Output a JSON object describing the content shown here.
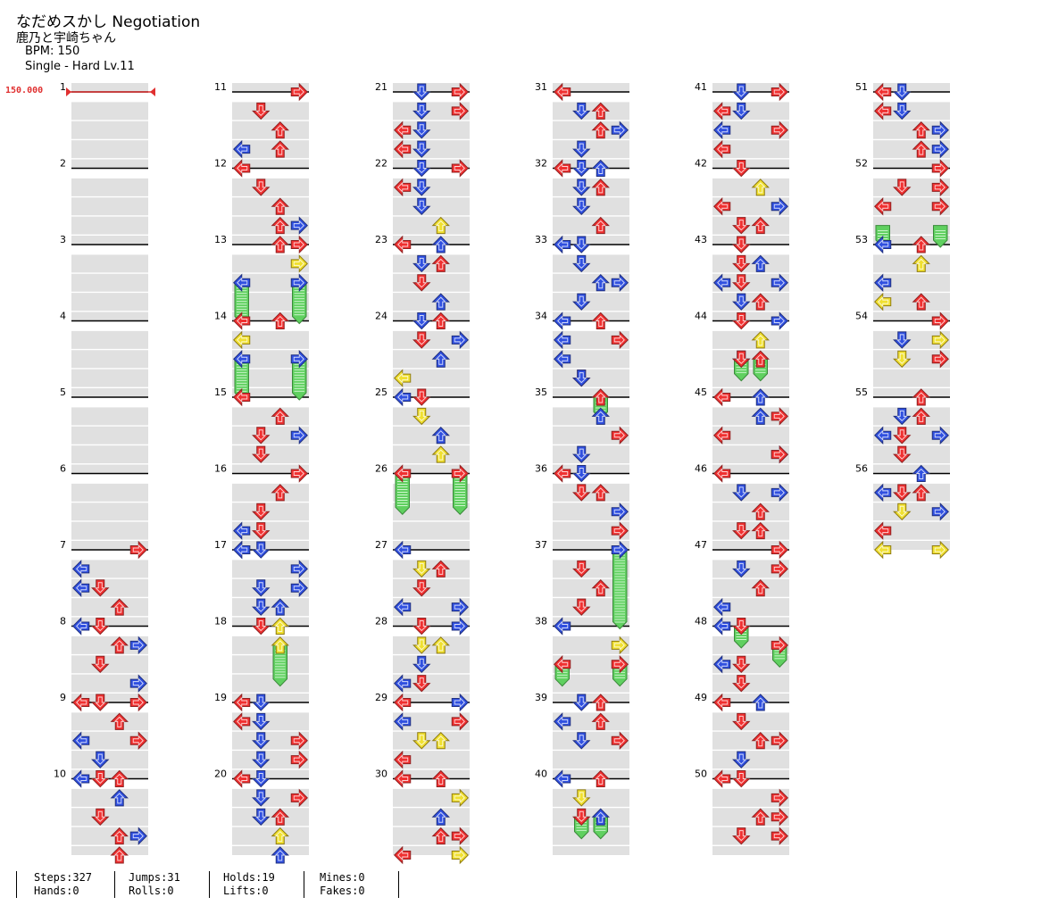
{
  "header": {
    "title": "なだめスかし Negotiation",
    "artist": "鹿乃と宇崎ちゃん",
    "bpm": "BPM: 150",
    "difficulty": "Single - Hard  Lv.11"
  },
  "bpm_marker": "150.000",
  "measure_count": 56,
  "colors": {
    "red": "#f03030",
    "blue": "#3050e0",
    "yellow": "#f0e030",
    "hold": "#60d060",
    "band": "#e0e0e0"
  },
  "stats": [
    {
      "a": "Steps:327",
      "b": "Hands:0"
    },
    {
      "a": "Jumps:31",
      "b": "Rolls:0"
    },
    {
      "a": "Holds:19",
      "b": "Lifts:0"
    },
    {
      "a": "Mines:0",
      "b": "Fakes:0"
    }
  ],
  "notes": [
    [
      7,
      0.0,
      3,
      "r"
    ],
    [
      7,
      0.25,
      0,
      "b"
    ],
    [
      7,
      0.5,
      1,
      "r"
    ],
    [
      7,
      0.5,
      0,
      "b"
    ],
    [
      7,
      0.75,
      2,
      "r"
    ],
    [
      7,
      1.0,
      0,
      "b"
    ],
    [
      8,
      0.0,
      1,
      "r"
    ],
    [
      8,
      0.25,
      2,
      "r"
    ],
    [
      8,
      0.25,
      3,
      "b"
    ],
    [
      8,
      0.5,
      1,
      "r"
    ],
    [
      8,
      0.75,
      3,
      "b"
    ],
    [
      8,
      1.0,
      1,
      "r"
    ],
    [
      9,
      0.0,
      0,
      "r"
    ],
    [
      9,
      0.0,
      3,
      "r"
    ],
    [
      9,
      0.25,
      2,
      "r"
    ],
    [
      9,
      0.5,
      0,
      "b"
    ],
    [
      9,
      0.5,
      3,
      "r"
    ],
    [
      9,
      0.75,
      1,
      "b"
    ],
    [
      9,
      1.0,
      0,
      "b"
    ],
    [
      9,
      1.0,
      2,
      "r"
    ],
    [
      10,
      0.0,
      1,
      "r"
    ],
    [
      10,
      0.25,
      2,
      "b"
    ],
    [
      10,
      0.5,
      1,
      "r"
    ],
    [
      10,
      0.75,
      2,
      "r"
    ],
    [
      10,
      0.75,
      3,
      "b"
    ],
    [
      10,
      1.0,
      2,
      "r"
    ],
    [
      11,
      0.0,
      3,
      "r"
    ],
    [
      11,
      0.25,
      1,
      "r"
    ],
    [
      11,
      0.5,
      2,
      "r"
    ],
    [
      11,
      0.75,
      0,
      "b"
    ],
    [
      11,
      0.75,
      2,
      "r"
    ],
    [
      12,
      0.0,
      0,
      "r"
    ],
    [
      12,
      0.25,
      1,
      "r"
    ],
    [
      12,
      0.5,
      2,
      "r"
    ],
    [
      12,
      0.75,
      2,
      "r"
    ],
    [
      12,
      0.75,
      3,
      "b"
    ],
    [
      13,
      0.0,
      2,
      "r"
    ],
    [
      13,
      0.0,
      3,
      "r"
    ],
    [
      13,
      0.25,
      3,
      "y"
    ],
    [
      13,
      0.5,
      0,
      "b"
    ],
    [
      13,
      0.5,
      3,
      "b"
    ],
    [
      14,
      0.0,
      0,
      "r"
    ],
    [
      14,
      0.0,
      2,
      "r"
    ],
    [
      14,
      0.25,
      0,
      "y"
    ],
    [
      14,
      0.5,
      0,
      "b"
    ],
    [
      14,
      0.5,
      3,
      "b"
    ],
    [
      15,
      0.0,
      0,
      "r"
    ],
    [
      15,
      0.25,
      2,
      "r"
    ],
    [
      15,
      0.5,
      1,
      "r"
    ],
    [
      15,
      0.5,
      3,
      "b"
    ],
    [
      15,
      0.75,
      1,
      "r"
    ],
    [
      16,
      0.0,
      3,
      "r"
    ],
    [
      16,
      0.25,
      2,
      "r"
    ],
    [
      16,
      0.5,
      1,
      "r"
    ],
    [
      16,
      0.75,
      0,
      "b"
    ],
    [
      16,
      0.75,
      1,
      "r"
    ],
    [
      16,
      1.0,
      0,
      "b"
    ],
    [
      17,
      0.0,
      0,
      "b"
    ],
    [
      17,
      0.0,
      1,
      "b"
    ],
    [
      17,
      0.25,
      3,
      "b"
    ],
    [
      17,
      0.5,
      1,
      "b"
    ],
    [
      17,
      0.5,
      3,
      "b"
    ],
    [
      17,
      0.75,
      1,
      "b"
    ],
    [
      17,
      0.75,
      2,
      "b"
    ],
    [
      18,
      0.0,
      1,
      "r"
    ],
    [
      18,
      0.0,
      2,
      "y"
    ],
    [
      18,
      0.25,
      2,
      "y"
    ],
    [
      19,
      0.0,
      0,
      "r"
    ],
    [
      19,
      0.0,
      1,
      "b"
    ],
    [
      19,
      0.25,
      0,
      "r"
    ],
    [
      19,
      0.25,
      1,
      "b"
    ],
    [
      19,
      0.5,
      1,
      "b"
    ],
    [
      19,
      0.5,
      3,
      "r"
    ],
    [
      19,
      0.75,
      1,
      "b"
    ],
    [
      19,
      0.75,
      3,
      "r"
    ],
    [
      20,
      0.0,
      0,
      "r"
    ],
    [
      20,
      0.0,
      1,
      "b"
    ],
    [
      20,
      0.25,
      1,
      "b"
    ],
    [
      20,
      0.25,
      3,
      "r"
    ],
    [
      20,
      0.5,
      1,
      "b"
    ],
    [
      20,
      0.5,
      2,
      "r"
    ],
    [
      20,
      0.75,
      2,
      "y"
    ],
    [
      20,
      1.0,
      2,
      "b"
    ],
    [
      21,
      0.0,
      1,
      "b"
    ],
    [
      21,
      0.0,
      3,
      "r"
    ],
    [
      21,
      0.25,
      1,
      "b"
    ],
    [
      21,
      0.25,
      3,
      "r"
    ],
    [
      21,
      0.5,
      0,
      "r"
    ],
    [
      21,
      0.5,
      1,
      "b"
    ],
    [
      21,
      0.75,
      0,
      "r"
    ],
    [
      21,
      0.75,
      1,
      "b"
    ],
    [
      22,
      0.0,
      1,
      "b"
    ],
    [
      22,
      0.0,
      3,
      "r"
    ],
    [
      22,
      0.25,
      0,
      "r"
    ],
    [
      22,
      0.25,
      1,
      "b"
    ],
    [
      22,
      0.5,
      1,
      "b"
    ],
    [
      22,
      0.75,
      2,
      "y"
    ],
    [
      22,
      1.0,
      2,
      "b"
    ],
    [
      23,
      0.0,
      0,
      "r"
    ],
    [
      23,
      0.25,
      1,
      "b"
    ],
    [
      23,
      0.25,
      2,
      "r"
    ],
    [
      23,
      0.5,
      1,
      "r"
    ],
    [
      23,
      0.75,
      2,
      "b"
    ],
    [
      23,
      1.0,
      1,
      "b"
    ],
    [
      24,
      0.0,
      2,
      "r"
    ],
    [
      24,
      0.25,
      3,
      "b"
    ],
    [
      24,
      0.25,
      1,
      "r"
    ],
    [
      24,
      0.5,
      2,
      "b"
    ],
    [
      24,
      0.75,
      0,
      "y"
    ],
    [
      24,
      1.0,
      0,
      "b"
    ],
    [
      25,
      0.0,
      1,
      "r"
    ],
    [
      25,
      0.25,
      1,
      "y"
    ],
    [
      25,
      0.5,
      2,
      "b"
    ],
    [
      25,
      0.75,
      2,
      "y"
    ],
    [
      26,
      0.0,
      0,
      "r"
    ],
    [
      26,
      0.0,
      3,
      "r"
    ],
    [
      27,
      0.0,
      0,
      "b"
    ],
    [
      27,
      0.25,
      1,
      "y"
    ],
    [
      27,
      0.25,
      2,
      "r"
    ],
    [
      27,
      0.5,
      1,
      "r"
    ],
    [
      27,
      0.75,
      0,
      "b"
    ],
    [
      27,
      0.75,
      3,
      "b"
    ],
    [
      28,
      0.0,
      1,
      "r"
    ],
    [
      28,
      0.0,
      3,
      "b"
    ],
    [
      28,
      0.25,
      1,
      "y"
    ],
    [
      28,
      0.25,
      2,
      "y"
    ],
    [
      28,
      0.5,
      1,
      "b"
    ],
    [
      28,
      0.75,
      0,
      "b"
    ],
    [
      28,
      0.75,
      1,
      "r"
    ],
    [
      29,
      0.0,
      0,
      "r"
    ],
    [
      29,
      0.0,
      3,
      "b"
    ],
    [
      29,
      0.25,
      0,
      "b"
    ],
    [
      29,
      0.25,
      3,
      "r"
    ],
    [
      29,
      0.5,
      1,
      "y"
    ],
    [
      29,
      0.5,
      2,
      "y"
    ],
    [
      29,
      0.75,
      0,
      "r"
    ],
    [
      30,
      0.0,
      0,
      "r"
    ],
    [
      30,
      0.0,
      2,
      "r"
    ],
    [
      30,
      0.25,
      3,
      "y"
    ],
    [
      30,
      0.5,
      2,
      "b"
    ],
    [
      30,
      0.75,
      2,
      "r"
    ],
    [
      30,
      0.75,
      3,
      "r"
    ],
    [
      30,
      1.0,
      0,
      "r"
    ],
    [
      30,
      1.0,
      3,
      "y"
    ],
    [
      31,
      0.0,
      0,
      "r"
    ],
    [
      31,
      0.25,
      1,
      "b"
    ],
    [
      31,
      0.25,
      2,
      "r"
    ],
    [
      31,
      0.5,
      3,
      "b"
    ],
    [
      31,
      0.5,
      2,
      "r"
    ],
    [
      31,
      0.75,
      1,
      "b"
    ],
    [
      31,
      1.0,
      0,
      "r"
    ],
    [
      32,
      0.0,
      1,
      "b"
    ],
    [
      32,
      0.0,
      2,
      "b"
    ],
    [
      32,
      0.25,
      1,
      "b"
    ],
    [
      32,
      0.25,
      2,
      "r"
    ],
    [
      32,
      0.5,
      1,
      "b"
    ],
    [
      32,
      0.75,
      2,
      "r"
    ],
    [
      32,
      1.0,
      1,
      "b"
    ],
    [
      33,
      0.0,
      0,
      "b"
    ],
    [
      33,
      0.25,
      1,
      "b"
    ],
    [
      33,
      0.5,
      2,
      "b"
    ],
    [
      33,
      0.5,
      3,
      "b"
    ],
    [
      33,
      0.75,
      1,
      "b"
    ],
    [
      34,
      0.0,
      0,
      "b"
    ],
    [
      34,
      0.0,
      2,
      "r"
    ],
    [
      34,
      0.25,
      0,
      "b"
    ],
    [
      34,
      0.25,
      3,
      "r"
    ],
    [
      34,
      0.5,
      0,
      "b"
    ],
    [
      34,
      0.75,
      1,
      "r"
    ],
    [
      34,
      0.75,
      1,
      "b"
    ],
    [
      35,
      0.0,
      2,
      "r"
    ],
    [
      35,
      0.25,
      2,
      "b"
    ],
    [
      35,
      0.5,
      3,
      "r"
    ],
    [
      35,
      0.75,
      1,
      "b"
    ],
    [
      36,
      0.0,
      0,
      "r"
    ],
    [
      36,
      0.0,
      1,
      "b"
    ],
    [
      36,
      0.25,
      1,
      "r"
    ],
    [
      36,
      0.25,
      2,
      "r"
    ],
    [
      36,
      0.5,
      3,
      "b"
    ],
    [
      36,
      0.75,
      3,
      "r"
    ],
    [
      37,
      0.0,
      3,
      "b"
    ],
    [
      37,
      0.25,
      1,
      "r"
    ],
    [
      37,
      0.5,
      2,
      "r"
    ],
    [
      37,
      0.75,
      1,
      "r"
    ],
    [
      38,
      0.0,
      0,
      "b"
    ],
    [
      38,
      0.25,
      3,
      "y"
    ],
    [
      38,
      0.5,
      0,
      "r"
    ],
    [
      38,
      0.5,
      3,
      "r"
    ],
    [
      39,
      0.0,
      1,
      "b"
    ],
    [
      39,
      0.0,
      2,
      "r"
    ],
    [
      39,
      0.25,
      0,
      "b"
    ],
    [
      39,
      0.25,
      2,
      "r"
    ],
    [
      39,
      0.5,
      1,
      "b"
    ],
    [
      39,
      0.5,
      3,
      "r"
    ],
    [
      40,
      0.0,
      0,
      "b"
    ],
    [
      40,
      0.0,
      2,
      "r"
    ],
    [
      40,
      0.25,
      1,
      "y"
    ],
    [
      40,
      0.5,
      1,
      "r"
    ],
    [
      40,
      0.5,
      2,
      "b"
    ],
    [
      41,
      0.0,
      1,
      "b"
    ],
    [
      41,
      0.0,
      3,
      "r"
    ],
    [
      41,
      0.25,
      0,
      "r"
    ],
    [
      41,
      0.25,
      1,
      "b"
    ],
    [
      41,
      0.5,
      0,
      "b"
    ],
    [
      41,
      0.5,
      3,
      "r"
    ],
    [
      41,
      0.75,
      0,
      "r"
    ],
    [
      42,
      0.0,
      1,
      "r"
    ],
    [
      42,
      0.25,
      2,
      "y"
    ],
    [
      42,
      0.5,
      3,
      "b"
    ],
    [
      42,
      0.5,
      0,
      "r"
    ],
    [
      42,
      0.75,
      1,
      "r"
    ],
    [
      42,
      0.75,
      2,
      "r"
    ],
    [
      42,
      1.0,
      1,
      "r"
    ],
    [
      43,
      0.0,
      1,
      "r"
    ],
    [
      43,
      0.25,
      1,
      "r"
    ],
    [
      43,
      0.25,
      2,
      "b"
    ],
    [
      43,
      0.5,
      0,
      "b"
    ],
    [
      43,
      0.5,
      1,
      "r"
    ],
    [
      43,
      0.5,
      3,
      "b"
    ],
    [
      43,
      0.75,
      1,
      "b"
    ],
    [
      43,
      0.75,
      2,
      "r"
    ],
    [
      44,
      0.0,
      1,
      "r"
    ],
    [
      44,
      0.0,
      3,
      "b"
    ],
    [
      44,
      0.25,
      2,
      "y"
    ],
    [
      44,
      0.5,
      1,
      "b"
    ],
    [
      44,
      0.5,
      1,
      "r"
    ],
    [
      44,
      0.5,
      2,
      "r"
    ],
    [
      45,
      0.0,
      0,
      "r"
    ],
    [
      45,
      0.0,
      2,
      "b"
    ],
    [
      45,
      0.25,
      2,
      "b"
    ],
    [
      45,
      0.25,
      3,
      "r"
    ],
    [
      45,
      0.5,
      0,
      "r"
    ],
    [
      45,
      0.75,
      3,
      "b"
    ],
    [
      45,
      0.75,
      3,
      "r"
    ],
    [
      46,
      0.0,
      0,
      "r"
    ],
    [
      46,
      0.25,
      1,
      "b"
    ],
    [
      46,
      0.25,
      3,
      "b"
    ],
    [
      46,
      0.5,
      2,
      "r"
    ],
    [
      46,
      0.75,
      1,
      "r"
    ],
    [
      46,
      0.75,
      2,
      "r"
    ],
    [
      47,
      0.0,
      3,
      "r"
    ],
    [
      47,
      0.25,
      1,
      "b"
    ],
    [
      47,
      0.25,
      3,
      "r"
    ],
    [
      47,
      0.5,
      2,
      "r"
    ],
    [
      47,
      0.75,
      0,
      "b"
    ],
    [
      47,
      1.0,
      0,
      "b"
    ],
    [
      48,
      0.0,
      1,
      "r"
    ],
    [
      48,
      0.25,
      3,
      "r"
    ],
    [
      48,
      0.5,
      1,
      "r"
    ],
    [
      48,
      0.5,
      0,
      "b"
    ],
    [
      48,
      0.75,
      1,
      "r"
    ],
    [
      49,
      0.0,
      0,
      "r"
    ],
    [
      49,
      0.0,
      2,
      "b"
    ],
    [
      49,
      0.25,
      1,
      "r"
    ],
    [
      49,
      0.5,
      2,
      "r"
    ],
    [
      49,
      0.5,
      3,
      "r"
    ],
    [
      49,
      0.75,
      1,
      "b"
    ],
    [
      49,
      1.0,
      1,
      "r"
    ],
    [
      50,
      0.0,
      0,
      "r"
    ],
    [
      50,
      0.25,
      3,
      "r"
    ],
    [
      50,
      0.5,
      2,
      "r"
    ],
    [
      50,
      0.5,
      3,
      "r"
    ],
    [
      50,
      0.75,
      1,
      "r"
    ],
    [
      50,
      0.75,
      3,
      "r"
    ],
    [
      51,
      0.0,
      0,
      "r"
    ],
    [
      51,
      0.0,
      1,
      "b"
    ],
    [
      51,
      0.25,
      0,
      "r"
    ],
    [
      51,
      0.25,
      1,
      "b"
    ],
    [
      51,
      0.5,
      2,
      "r"
    ],
    [
      51,
      0.5,
      3,
      "b"
    ],
    [
      51,
      0.75,
      2,
      "r"
    ],
    [
      51,
      0.75,
      3,
      "b"
    ],
    [
      52,
      0.0,
      3,
      "r"
    ],
    [
      52,
      0.25,
      1,
      "r"
    ],
    [
      52,
      0.25,
      3,
      "r"
    ],
    [
      52,
      0.5,
      0,
      "r"
    ],
    [
      52,
      0.5,
      3,
      "r"
    ],
    [
      53,
      0.0,
      0,
      "b"
    ],
    [
      53,
      0.0,
      2,
      "r"
    ],
    [
      53,
      0.25,
      2,
      "y"
    ],
    [
      53,
      0.5,
      0,
      "b"
    ],
    [
      53,
      0.75,
      0,
      "y"
    ],
    [
      53,
      0.75,
      2,
      "r"
    ],
    [
      54,
      0.0,
      3,
      "r"
    ],
    [
      54,
      0.25,
      1,
      "b"
    ],
    [
      54,
      0.25,
      3,
      "y"
    ],
    [
      54,
      0.5,
      1,
      "y"
    ],
    [
      54,
      0.5,
      3,
      "r"
    ],
    [
      55,
      0.0,
      2,
      "r"
    ],
    [
      55,
      0.25,
      1,
      "b"
    ],
    [
      55,
      0.25,
      2,
      "r"
    ],
    [
      55,
      0.5,
      0,
      "b"
    ],
    [
      55,
      0.5,
      1,
      "r"
    ],
    [
      55,
      0.5,
      3,
      "b"
    ],
    [
      55,
      0.75,
      1,
      "r"
    ],
    [
      56,
      0.0,
      2,
      "b"
    ],
    [
      56,
      0.25,
      0,
      "b"
    ],
    [
      56,
      0.25,
      1,
      "r"
    ],
    [
      56,
      0.25,
      2,
      "r"
    ],
    [
      56,
      0.5,
      1,
      "y"
    ],
    [
      56,
      0.5,
      3,
      "b"
    ],
    [
      56,
      0.75,
      0,
      "r"
    ],
    [
      56,
      1.0,
      0,
      "y"
    ],
    [
      56,
      1.0,
      3,
      "y"
    ]
  ],
  "holds": [
    [
      13,
      0.5,
      14,
      0.0,
      0
    ],
    [
      13,
      0.5,
      14,
      0.0,
      3
    ],
    [
      14,
      0.5,
      15,
      0.0,
      0
    ],
    [
      14,
      0.5,
      15,
      0.0,
      3
    ],
    [
      18,
      0.25,
      18,
      0.75,
      2
    ],
    [
      26,
      0.0,
      26,
      0.5,
      0
    ],
    [
      26,
      0.0,
      26,
      0.5,
      3
    ],
    [
      35,
      0.0,
      35,
      0.25,
      2
    ],
    [
      37,
      0.0,
      38,
      0.0,
      3
    ],
    [
      38,
      0.5,
      38,
      0.75,
      0
    ],
    [
      38,
      0.5,
      38,
      0.75,
      3
    ],
    [
      40,
      0.5,
      40,
      0.75,
      1
    ],
    [
      40,
      0.5,
      40,
      0.75,
      2
    ],
    [
      44,
      0.5,
      44,
      0.75,
      1
    ],
    [
      44,
      0.5,
      44,
      0.75,
      2
    ],
    [
      48,
      0.0,
      48,
      0.25,
      1
    ],
    [
      48,
      0.25,
      48,
      0.5,
      3
    ],
    [
      52,
      0.75,
      53,
      0.0,
      0
    ],
    [
      52,
      0.75,
      53,
      0.0,
      3
    ]
  ]
}
